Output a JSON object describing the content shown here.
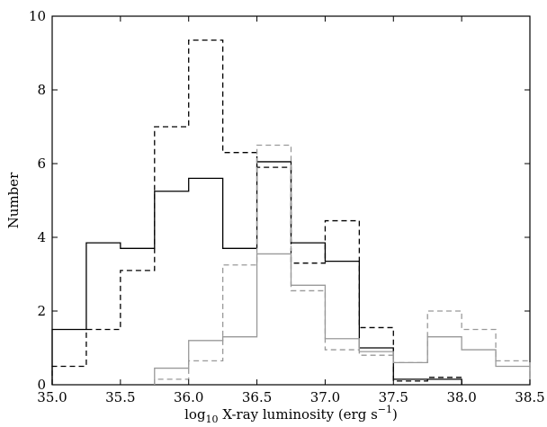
{
  "chart_data": {
    "type": "line",
    "step": true,
    "xlabel": {
      "main": "log",
      "sub": "10",
      "rest": " X-ray luminosity (erg s",
      "sup": "−1",
      "close": ")"
    },
    "ylabel": "Number",
    "xlim": [
      35.0,
      38.5
    ],
    "ylim": [
      0,
      10
    ],
    "xticks": [
      "35.0",
      "35.5",
      "36.0",
      "36.5",
      "37.0",
      "37.5",
      "38.0",
      "38.5"
    ],
    "yticks": [
      "0",
      "2",
      "4",
      "6",
      "8",
      "10"
    ],
    "bin_edges": [
      35.0,
      35.25,
      35.5,
      35.75,
      36.0,
      36.25,
      36.5,
      36.75,
      37.0,
      37.25,
      37.5,
      37.75,
      38.0,
      38.25,
      38.5
    ],
    "grid": false,
    "series": [
      {
        "style": "solid",
        "color": "#000000",
        "values": [
          1.5,
          3.85,
          3.7,
          5.25,
          5.6,
          3.7,
          6.05,
          3.85,
          3.35,
          1.0,
          0.15,
          0.15,
          null,
          null
        ]
      },
      {
        "style": "dashed",
        "color": "#000000",
        "values": [
          0.5,
          1.5,
          3.1,
          7.0,
          9.35,
          6.3,
          5.9,
          3.3,
          4.45,
          1.55,
          0.1,
          0.2,
          null,
          null
        ]
      },
      {
        "style": "solid",
        "color": "#999999",
        "values": [
          null,
          null,
          null,
          0.45,
          1.2,
          1.3,
          3.55,
          2.7,
          1.25,
          0.9,
          0.6,
          1.3,
          0.95,
          0.5
        ]
      },
      {
        "style": "dashed",
        "color": "#999999",
        "values": [
          null,
          null,
          null,
          0.15,
          0.65,
          3.25,
          6.5,
          2.55,
          0.95,
          0.8,
          0.6,
          2.0,
          1.5,
          0.65
        ]
      }
    ]
  }
}
